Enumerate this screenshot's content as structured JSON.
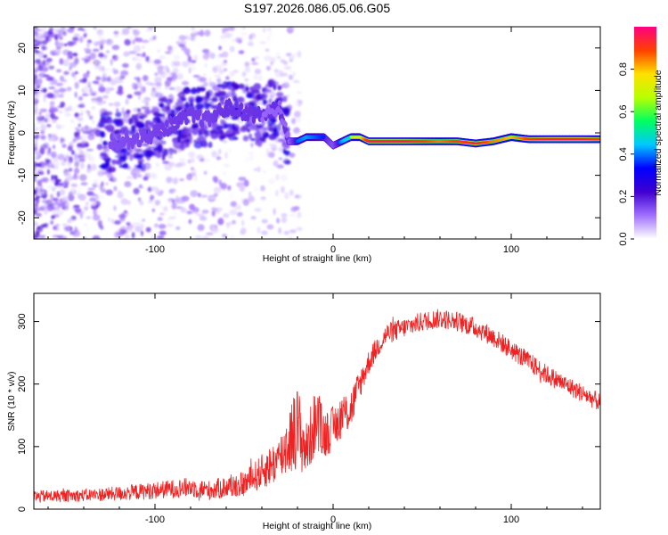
{
  "title": "S197.2026.086.05.06.G05",
  "chart_data": [
    {
      "type": "heatmap",
      "xlabel": "Height of straight line (km)",
      "ylabel": "Frequency (Hz)",
      "xlim": [
        -168,
        150
      ],
      "ylim": [
        -25,
        25
      ],
      "x_ticks": [
        -100,
        0,
        100
      ],
      "x_tick_labels": [
        "-100",
        "0",
        "100"
      ],
      "y_ticks": [
        -20,
        -10,
        0,
        10,
        20
      ],
      "y_tick_labels": [
        "-20",
        "-10",
        "0",
        "10",
        "20"
      ],
      "colorbar": {
        "label": "Normalized spectral amplitude",
        "range": [
          0,
          1
        ],
        "ticks": [
          0.0,
          0.2,
          0.4,
          0.6,
          0.8
        ],
        "tick_labels": [
          "0.0",
          "0.2",
          "0.4",
          "0.6",
          "0.8"
        ],
        "colors": [
          "#ffffff",
          "#a070ff",
          "#4000d0",
          "#0000ff",
          "#00c8ff",
          "#00ff60",
          "#b8ff00",
          "#ffe000",
          "#ff4000",
          "#ff0080"
        ]
      },
      "ridge": {
        "x": [
          -120,
          -105,
          -90,
          -80,
          -70,
          -60,
          -50,
          -40,
          -30,
          -25,
          -20,
          -15,
          -10,
          -5,
          0,
          5,
          10,
          15,
          20,
          30,
          40,
          50,
          60,
          70,
          80,
          90,
          100,
          110,
          120,
          130,
          140,
          148
        ],
        "frequency": [
          -2,
          -1,
          2,
          4,
          3,
          6,
          5,
          4,
          6,
          -2,
          -2,
          -1,
          -1,
          -1,
          -3,
          -2,
          -1,
          -1,
          -2,
          -2,
          -2,
          -2,
          -2,
          -2,
          -2.5,
          -2,
          -1,
          -1.5,
          -1.5,
          -1.5,
          -1.5,
          -1.5
        ],
        "amplitude": [
          0.15,
          0.2,
          0.25,
          0.25,
          0.22,
          0.3,
          0.28,
          0.3,
          0.32,
          0.3,
          0.55,
          0.6,
          0.55,
          0.5,
          0.35,
          0.6,
          0.7,
          0.75,
          0.95,
          0.95,
          0.95,
          0.9,
          0.85,
          0.9,
          0.95,
          0.85,
          0.8,
          0.9,
          0.95,
          0.95,
          0.95,
          0.9
        ]
      }
    },
    {
      "type": "line",
      "series": [
        {
          "name": "SNR",
          "color": "#ee2222"
        }
      ],
      "xlabel": "Height of straight line (km)",
      "ylabel": "SNR (10 * v/v)",
      "xlim": [
        -168,
        150
      ],
      "ylim": [
        0,
        345
      ],
      "x_ticks": [
        -100,
        0,
        100
      ],
      "x_tick_labels": [
        "-100",
        "0",
        "100"
      ],
      "y_ticks": [
        0,
        100,
        200,
        300
      ],
      "y_tick_labels": [
        "0",
        "100",
        "200",
        "300"
      ],
      "envelope": {
        "x": [
          -168,
          -140,
          -120,
          -100,
          -80,
          -70,
          -60,
          -50,
          -40,
          -30,
          -25,
          -20,
          -15,
          -10,
          -5,
          0,
          5,
          10,
          15,
          20,
          25,
          30,
          40,
          50,
          60,
          70,
          80,
          90,
          100,
          110,
          120,
          130,
          140,
          150
        ],
        "mean": [
          20,
          22,
          25,
          30,
          35,
          30,
          35,
          40,
          60,
          80,
          110,
          130,
          95,
          140,
          120,
          130,
          150,
          160,
          200,
          235,
          260,
          280,
          290,
          300,
          305,
          300,
          290,
          275,
          255,
          235,
          215,
          200,
          185,
          170
        ],
        "noise": [
          10,
          10,
          12,
          14,
          16,
          16,
          18,
          20,
          28,
          38,
          55,
          70,
          45,
          55,
          40,
          35,
          35,
          35,
          25,
          20,
          18,
          18,
          16,
          16,
          16,
          16,
          16,
          16,
          16,
          16,
          16,
          15,
          15,
          15
        ]
      }
    }
  ]
}
